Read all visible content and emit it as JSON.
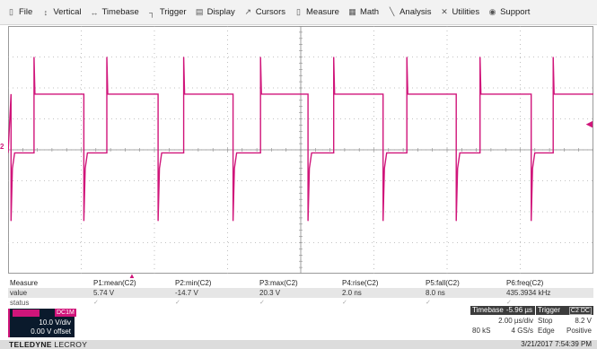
{
  "menu": [
    {
      "label": "File",
      "icon": "file-icon",
      "glyph": "▯"
    },
    {
      "label": "Vertical",
      "icon": "vertical-icon",
      "glyph": "↕"
    },
    {
      "label": "Timebase",
      "icon": "timebase-icon",
      "glyph": "↔"
    },
    {
      "label": "Trigger",
      "icon": "trigger-icon",
      "glyph": "┐"
    },
    {
      "label": "Display",
      "icon": "display-icon",
      "glyph": "▤"
    },
    {
      "label": "Cursors",
      "icon": "cursors-icon",
      "glyph": "↗"
    },
    {
      "label": "Measure",
      "icon": "measure-icon",
      "glyph": "▯"
    },
    {
      "label": "Math",
      "icon": "math-icon",
      "glyph": "▦"
    },
    {
      "label": "Analysis",
      "icon": "analysis-icon",
      "glyph": "╲"
    },
    {
      "label": "Utilities",
      "icon": "utilities-icon",
      "glyph": "✕"
    },
    {
      "label": "Support",
      "icon": "support-icon",
      "glyph": "◉"
    }
  ],
  "grid": {
    "channel_marker": "2",
    "trace_color": "#d0157a",
    "levels": {
      "high_div": 1.8,
      "low_div": -0.1
    },
    "rising_edges_div": [
      0.71,
      2.7,
      4.8,
      6.9,
      8.9,
      10.9,
      12.9,
      14.9
    ],
    "falling_edges_div": [
      0.08,
      2.07,
      4.1,
      6.15,
      8.2,
      10.25,
      12.25,
      14.3
    ]
  },
  "measure": {
    "row_label": "Measure",
    "value_label": "value",
    "status_label": "status",
    "params": [
      {
        "name": "P1:mean(C2)",
        "value": "5.74 V"
      },
      {
        "name": "P2:min(C2)",
        "value": "-14.7 V"
      },
      {
        "name": "P3:max(C2)",
        "value": "20.3 V"
      },
      {
        "name": "P4:rise(C2)",
        "value": "2.0 ns"
      },
      {
        "name": "P5:fall(C2)",
        "value": "8.0 ns"
      },
      {
        "name": "P6:freq(C2)",
        "value": "435.3934 kHz"
      }
    ],
    "status_mark": "✓"
  },
  "channel": {
    "coupling": "DC1M",
    "vdiv": "10.0 V/div",
    "offset": "0.00 V offset",
    "color": "#d0157a"
  },
  "timebase": {
    "title": "Timebase",
    "delay": "-5.96 µs",
    "tdiv": "2.00 µs/div",
    "samples": "80 kS",
    "rate": "4 GS/s"
  },
  "trigger": {
    "title": "Trigger",
    "channel": "C2",
    "coupling": "DC",
    "mode": "Stop",
    "level": "8.2 V",
    "type": "Edge",
    "slope": "Positive"
  },
  "footer": {
    "brand_bold": "TELEDYNE",
    "brand_rest": " LECROY",
    "datetime": "3/21/2017 7:54:39 PM"
  }
}
